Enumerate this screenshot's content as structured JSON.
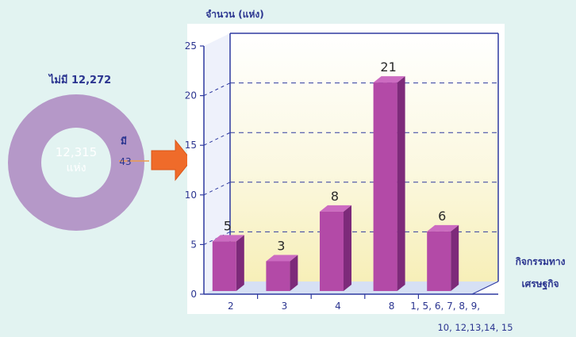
{
  "colors": {
    "background": "#e2f3f1",
    "donut": "#b598c8",
    "arrow": "#ef6b2a",
    "label_blue": "#2b3590",
    "bar_front": "#b34aa7",
    "bar_top": "#cc6bc1",
    "bar_side": "#7d2a7a",
    "grid": "#2f3aa0"
  },
  "donut": {
    "center_value": "12,315",
    "center_unit": "แห่ง",
    "outer_label": "ไม่มี 12,272",
    "small_label": "มี",
    "small_value": "43",
    "values": [
      12272,
      43
    ]
  },
  "chart_data": {
    "type": "bar",
    "ylabel": "จำนวน (แห่ง)",
    "xlabel_line1": "กิจกรรมทาง",
    "xlabel_line2": "เศรษฐกิจ",
    "categories": [
      "2",
      "3",
      "4",
      "8",
      "1, 5, 6, 7, 8, 9,"
    ],
    "category_extra": "10, 12,13,14, 15",
    "values": [
      5,
      3,
      8,
      21,
      6
    ],
    "value_labels": [
      "5",
      "3",
      "8",
      "21",
      "6"
    ],
    "ylim": [
      0,
      25
    ],
    "yticks": [
      "0",
      "5",
      "10",
      "15",
      "20",
      "25"
    ],
    "grid": true
  }
}
